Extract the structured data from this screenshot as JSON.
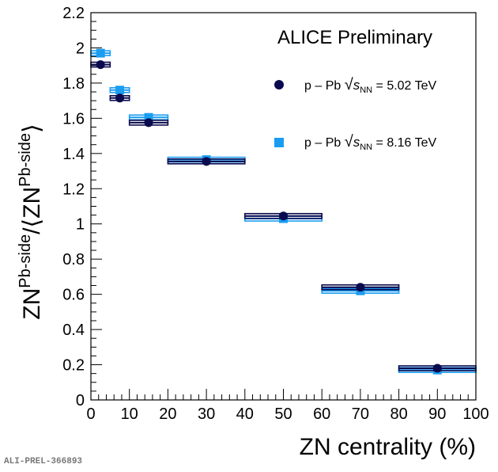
{
  "chart_data": {
    "type": "scatter",
    "title": "ALICE Preliminary",
    "xlabel": "ZN centrality (%)",
    "ylabel": {
      "base": "ZN",
      "sup1": "Pb-side",
      "divider": "/",
      "open": "⟨",
      "base2": "ZN",
      "sup2": "Pb-side",
      "close": "⟩"
    },
    "xlim": [
      0,
      100
    ],
    "ylim": [
      0,
      2.2
    ],
    "xticks": [
      0,
      10,
      20,
      30,
      40,
      50,
      60,
      70,
      80,
      90,
      100
    ],
    "xtick_labels": [
      "0",
      "10",
      "20",
      "30",
      "40",
      "50",
      "60",
      "70",
      "80",
      "90",
      "100"
    ],
    "yticks": [
      0,
      0.2,
      0.4,
      0.6,
      0.8,
      1,
      1.2,
      1.4,
      1.6,
      1.8,
      2,
      2.2
    ],
    "ytick_labels": [
      "0",
      "0.2",
      "0.4",
      "0.6",
      "0.8",
      "1",
      "1.2",
      "1.4",
      "1.6",
      "1.8",
      "2",
      "2.2"
    ],
    "grid": false,
    "legend_position": "top-right",
    "series": [
      {
        "name": "p – Pb √s_NN = 5.02 TeV",
        "legend": {
          "prefix": "p – Pb ",
          "sqrt": "√",
          "s": "s",
          "sub": "NN",
          "suffix": " = 5.02 TeV"
        },
        "marker": "circle",
        "color": "#0a0a4e",
        "points": [
          {
            "x": 2.5,
            "xlow": 0,
            "xhigh": 5,
            "y": 1.905
          },
          {
            "x": 7.5,
            "xlow": 5,
            "xhigh": 10,
            "y": 1.715
          },
          {
            "x": 15,
            "xlow": 10,
            "xhigh": 20,
            "y": 1.575
          },
          {
            "x": 30,
            "xlow": 20,
            "xhigh": 40,
            "y": 1.355
          },
          {
            "x": 50,
            "xlow": 40,
            "xhigh": 60,
            "y": 1.045
          },
          {
            "x": 70,
            "xlow": 60,
            "xhigh": 80,
            "y": 0.64
          },
          {
            "x": 90,
            "xlow": 80,
            "xhigh": 100,
            "y": 0.18
          }
        ]
      },
      {
        "name": "p – Pb √s_NN = 8.16 TeV",
        "legend": {
          "prefix": "p – Pb ",
          "sqrt": "√",
          "s": "s",
          "sub": "NN",
          "suffix": " = 8.16 TeV"
        },
        "marker": "square",
        "color": "#1a9cf0",
        "points": [
          {
            "x": 2.5,
            "xlow": 0,
            "xhigh": 5,
            "y": 1.97
          },
          {
            "x": 7.5,
            "xlow": 5,
            "xhigh": 10,
            "y": 1.76
          },
          {
            "x": 15,
            "xlow": 10,
            "xhigh": 20,
            "y": 1.605
          },
          {
            "x": 30,
            "xlow": 20,
            "xhigh": 40,
            "y": 1.365
          },
          {
            "x": 50,
            "xlow": 40,
            "xhigh": 60,
            "y": 1.03
          },
          {
            "x": 70,
            "xlow": 60,
            "xhigh": 80,
            "y": 0.62
          },
          {
            "x": 90,
            "xlow": 80,
            "xhigh": 100,
            "y": 0.17
          }
        ]
      }
    ]
  },
  "watermark": "ALI-PREL-366893"
}
